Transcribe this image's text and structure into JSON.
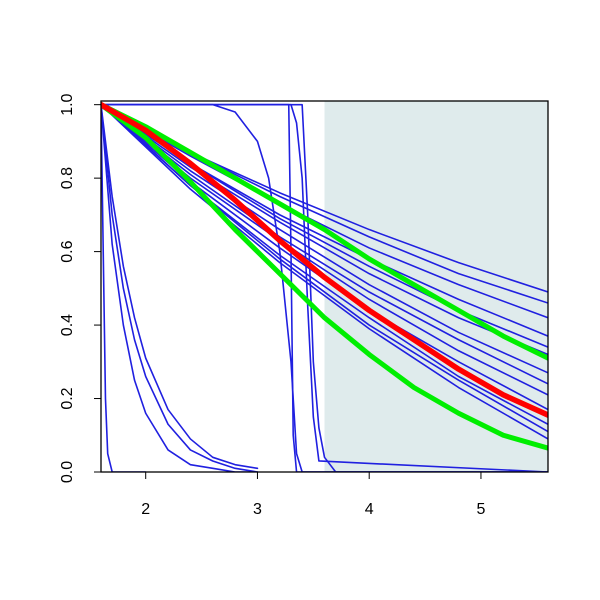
{
  "chart_data": {
    "type": "line",
    "xlim": [
      1.6,
      5.6
    ],
    "ylim": [
      0,
      1.01
    ],
    "xticks": [
      2,
      3,
      4,
      5
    ],
    "yticks": [
      {
        "value": 0,
        "label": "0.0"
      },
      0.2,
      0.4,
      0.6,
      0.8,
      {
        "value": 1,
        "label": "1.0"
      }
    ],
    "highlight_x": [
      3.6,
      5.6
    ],
    "highlight_color": "#dfebec",
    "series": [
      {
        "color": "#2020e0",
        "line_width": 1.6,
        "x": [
          1.6,
          2.4,
          3.2,
          4.0,
          4.8,
          5.6
        ],
        "values": [
          1,
          0.87,
          0.76,
          0.66,
          0.57,
          0.49
        ]
      },
      {
        "color": "#2020e0",
        "line_width": 1.6,
        "x": [
          1.6,
          2.4,
          3.2,
          4.0,
          4.8,
          5.6
        ],
        "values": [
          1,
          0.87,
          0.75,
          0.64,
          0.54,
          0.46
        ]
      },
      {
        "color": "#2020e0",
        "line_width": 1.6,
        "x": [
          1.6,
          2.4,
          3.2,
          4.0,
          4.8,
          5.6
        ],
        "values": [
          1,
          0.86,
          0.73,
          0.61,
          0.51,
          0.42
        ]
      },
      {
        "color": "#2020e0",
        "line_width": 1.6,
        "x": [
          1.6,
          2.4,
          3.2,
          4.0,
          4.8,
          5.6
        ],
        "values": [
          1,
          0.84,
          0.7,
          0.58,
          0.47,
          0.37
        ]
      },
      {
        "color": "#2020e0",
        "line_width": 1.6,
        "x": [
          1.6,
          2.4,
          3.2,
          4.0,
          4.8,
          5.6
        ],
        "values": [
          1,
          0.84,
          0.69,
          0.56,
          0.44,
          0.34
        ]
      },
      {
        "color": "#2020e0",
        "line_width": 1.6,
        "x": [
          1.6,
          2.4,
          3.2,
          4.0,
          4.8,
          5.6
        ],
        "values": [
          1,
          0.83,
          0.68,
          0.54,
          0.42,
          0.32
        ]
      },
      {
        "color": "#2020e0",
        "line_width": 1.6,
        "x": [
          1.6,
          2.4,
          3.2,
          4.0,
          4.8,
          5.6
        ],
        "values": [
          1,
          0.82,
          0.66,
          0.51,
          0.38,
          0.27
        ]
      },
      {
        "color": "#2020e0",
        "line_width": 1.6,
        "x": [
          1.6,
          2.4,
          3.2,
          4.0,
          4.8,
          5.6
        ],
        "values": [
          1,
          0.81,
          0.64,
          0.49,
          0.36,
          0.24
        ]
      },
      {
        "color": "#2020e0",
        "line_width": 1.6,
        "x": [
          1.6,
          2.4,
          3.2,
          4.0,
          4.8,
          5.6
        ],
        "values": [
          1,
          0.8,
          0.63,
          0.47,
          0.33,
          0.21
        ]
      },
      {
        "color": "#2020e0",
        "line_width": 1.6,
        "x": [
          1.6,
          2.4,
          3.2,
          4.0,
          4.8,
          5.6
        ],
        "values": [
          1,
          0.79,
          0.61,
          0.44,
          0.3,
          0.17
        ]
      },
      {
        "color": "#2020e0",
        "line_width": 1.6,
        "x": [
          1.6,
          2.4,
          3.2,
          4.0,
          4.8,
          5.6
        ],
        "values": [
          1,
          0.78,
          0.59,
          0.42,
          0.26,
          0.13
        ]
      },
      {
        "color": "#2020e0",
        "line_width": 1.6,
        "x": [
          1.6,
          2.4,
          3.2,
          4.0,
          4.8,
          5.6
        ],
        "values": [
          1,
          0.78,
          0.58,
          0.4,
          0.25,
          0.11
        ]
      },
      {
        "color": "#2020e0",
        "line_width": 1.6,
        "x": [
          1.6,
          2.4,
          3.2,
          4.0,
          4.8,
          5.6
        ],
        "values": [
          1,
          0.77,
          0.57,
          0.39,
          0.23,
          0.09
        ]
      },
      {
        "color": "#2020e0",
        "line_width": 1.6,
        "x": [
          1.6,
          1.62,
          1.64,
          1.66,
          1.7,
          2.0
        ],
        "values": [
          1,
          0.6,
          0.2,
          0.05,
          0,
          0
        ]
      },
      {
        "color": "#2020e0",
        "line_width": 1.6,
        "x": [
          1.6,
          1.7,
          1.8,
          1.9,
          2.0,
          2.2,
          2.4,
          2.6,
          2.8,
          3.0
        ],
        "values": [
          1,
          0.62,
          0.4,
          0.25,
          0.16,
          0.06,
          0.02,
          0.01,
          0,
          0
        ]
      },
      {
        "color": "#2020e0",
        "line_width": 1.6,
        "x": [
          1.6,
          1.7,
          1.8,
          1.9,
          2.0,
          2.2,
          2.4,
          2.6,
          2.8,
          3.0
        ],
        "values": [
          1,
          0.7,
          0.5,
          0.36,
          0.26,
          0.13,
          0.06,
          0.03,
          0.01,
          0
        ]
      },
      {
        "color": "#2020e0",
        "line_width": 1.6,
        "x": [
          1.6,
          1.7,
          1.8,
          1.9,
          2.0,
          2.2,
          2.4,
          2.6,
          2.8,
          3.0
        ],
        "values": [
          1,
          0.75,
          0.56,
          0.42,
          0.31,
          0.17,
          0.09,
          0.04,
          0.02,
          0.01
        ]
      },
      {
        "color": "#2020e0",
        "line_width": 1.6,
        "x": [
          1.6,
          2.6,
          2.8,
          3.0,
          3.1,
          3.2,
          3.3,
          3.35,
          3.4,
          5.6
        ],
        "values": [
          1,
          1,
          0.98,
          0.9,
          0.8,
          0.6,
          0.3,
          0.05,
          0,
          0
        ]
      },
      {
        "color": "#2020e0",
        "line_width": 1.6,
        "x": [
          1.6,
          3.28,
          3.3,
          3.32,
          3.35,
          5.6
        ],
        "values": [
          1,
          1,
          0.6,
          0.1,
          0,
          0
        ]
      },
      {
        "color": "#2020e0",
        "line_width": 1.6,
        "x": [
          1.6,
          3.3,
          3.35,
          3.4,
          3.45,
          3.5,
          3.55,
          5.6
        ],
        "values": [
          1,
          1,
          0.95,
          0.8,
          0.45,
          0.15,
          0.03,
          0
        ]
      },
      {
        "color": "#2020e0",
        "line_width": 1.6,
        "x": [
          1.6,
          3.4,
          3.45,
          3.5,
          3.55,
          3.6,
          3.7,
          5.6
        ],
        "values": [
          1,
          1,
          0.7,
          0.3,
          0.12,
          0.04,
          0,
          0
        ]
      },
      {
        "color": "#00ee00",
        "line_width": 5,
        "x": [
          1.6,
          2.0,
          2.4,
          2.8,
          3.2,
          3.6,
          4.0,
          4.4,
          4.8,
          5.2,
          5.6
        ],
        "values": [
          1,
          0.94,
          0.87,
          0.8,
          0.73,
          0.66,
          0.58,
          0.51,
          0.44,
          0.37,
          0.31
        ]
      },
      {
        "color": "#00ee00",
        "line_width": 5,
        "x": [
          1.6,
          2.0,
          2.4,
          2.8,
          3.2,
          3.6,
          4.0,
          4.4,
          4.8,
          5.2,
          5.6
        ],
        "values": [
          1,
          0.91,
          0.79,
          0.66,
          0.54,
          0.42,
          0.32,
          0.23,
          0.16,
          0.1,
          0.065
        ]
      },
      {
        "color": "#ff0000",
        "line_width": 5.5,
        "x": [
          1.6,
          2.0,
          2.4,
          2.8,
          3.2,
          3.6,
          4.0,
          4.4,
          4.8,
          5.2,
          5.6
        ],
        "values": [
          1,
          0.93,
          0.84,
          0.74,
          0.63,
          0.53,
          0.44,
          0.36,
          0.28,
          0.21,
          0.155
        ]
      }
    ]
  }
}
